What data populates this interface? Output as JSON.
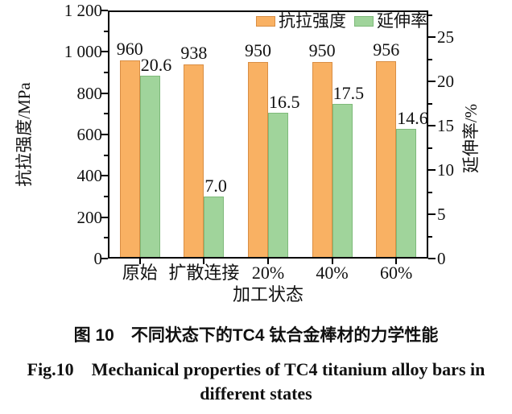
{
  "chart_data": {
    "type": "bar",
    "title": "",
    "xlabel": "加工状态",
    "categories": [
      "原始",
      "扩散连接",
      "20%",
      "40%",
      "60%"
    ],
    "series": [
      {
        "name": "抗拉强度",
        "axis": "left",
        "color": "#F9B163",
        "border_color": "#D98E44",
        "values": [
          960,
          938,
          950,
          950,
          956
        ],
        "value_labels": [
          "960",
          "938",
          "950",
          "950",
          "956"
        ]
      },
      {
        "name": "延伸率",
        "axis": "right",
        "color": "#A0D49B",
        "border_color": "#7EBA7A",
        "values": [
          20.6,
          7.0,
          16.5,
          17.5,
          14.6
        ],
        "value_labels": [
          "20.6",
          "7.0",
          "16.5",
          "17.5",
          "14.6"
        ]
      }
    ],
    "left_axis": {
      "label": "抗拉强度/MPa",
      "min": 0,
      "max": 1200,
      "ticks": [
        {
          "v": 0,
          "t": "0"
        },
        {
          "v": 200,
          "t": "200"
        },
        {
          "v": 400,
          "t": "400"
        },
        {
          "v": 600,
          "t": "600"
        },
        {
          "v": 800,
          "t": "800"
        },
        {
          "v": 1000,
          "t": "1 000"
        },
        {
          "v": 1200,
          "t": "1 200"
        }
      ],
      "minor_ticks": [
        100,
        300,
        500,
        700,
        900,
        1100
      ]
    },
    "right_axis": {
      "label": "延伸率/%",
      "min": 0,
      "max": 28,
      "ticks": [
        {
          "v": 0,
          "t": "0"
        },
        {
          "v": 5,
          "t": "5"
        },
        {
          "v": 10,
          "t": "10"
        },
        {
          "v": 15,
          "t": "15"
        },
        {
          "v": 20,
          "t": "20"
        },
        {
          "v": 25,
          "t": "25"
        }
      ],
      "minor_ticks": [
        2.5,
        7.5,
        12.5,
        17.5,
        22.5,
        27.5
      ]
    },
    "legend": [
      "抗拉强度",
      "延伸率"
    ],
    "legend_position": "top-right-inside",
    "grid": false
  },
  "caption": {
    "zh": "图 10　不同状态下的TC4 钛合金棒材的力学性能",
    "en_line1": "Fig.10　Mechanical properties of TC4 titanium alloy bars in",
    "en_line2": "different states"
  }
}
